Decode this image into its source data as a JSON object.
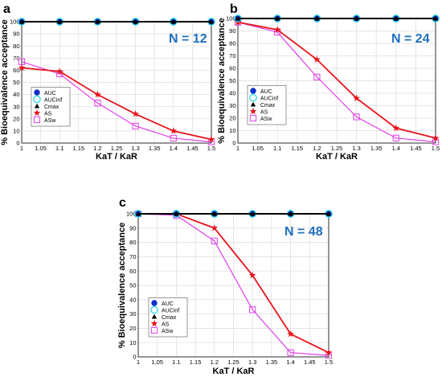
{
  "chart_data": [
    {
      "type": "line",
      "panel": "a",
      "annotation": "N = 12",
      "xlabel": "KaT / KaR",
      "ylabel": "% Bioequivalence acceptance",
      "xlim": [
        1,
        1.5
      ],
      "ylim": [
        0,
        100
      ],
      "xticks": [
        "1",
        "1.05",
        "1.1",
        "1.15",
        "1.2",
        "1.25",
        "1.3",
        "1.35",
        "1.4",
        "1.45",
        "1.5"
      ],
      "yticks": [
        "0",
        "10",
        "20",
        "30",
        "40",
        "50",
        "60",
        "70",
        "80",
        "90",
        "100"
      ],
      "grid": true,
      "legend_position": "bottom-left",
      "x": [
        1,
        1.1,
        1.2,
        1.3,
        1.4,
        1.5
      ],
      "series": [
        {
          "name": "AUC",
          "marker": "filled-circle",
          "color": "#1030c8",
          "values": [
            100,
            100,
            100,
            100,
            100,
            100
          ]
        },
        {
          "name": "AUCinf",
          "marker": "open-circle",
          "color": "#2fd7e0",
          "values": [
            100,
            100,
            100,
            100,
            100,
            100
          ]
        },
        {
          "name": "Cmax",
          "marker": "filled-triangle",
          "color": "#000000",
          "values": [
            100,
            100,
            100,
            100,
            100,
            100
          ]
        },
        {
          "name": "AS",
          "marker": "star",
          "color": "#e8141c",
          "values": [
            62,
            59,
            40,
            24,
            10,
            3
          ]
        },
        {
          "name": "ASw",
          "marker": "open-square",
          "color": "#e040e8",
          "values": [
            67,
            57,
            33,
            14,
            4,
            1
          ]
        }
      ]
    },
    {
      "type": "line",
      "panel": "b",
      "annotation": "N = 24",
      "xlabel": "KaT / KaR",
      "ylabel": "% Bioequivalence acceptance",
      "xlim": [
        1,
        1.5
      ],
      "ylim": [
        0,
        100
      ],
      "xticks": [
        "1",
        "1.05",
        "1.1",
        "1.15",
        "1.2",
        "1.25",
        "1.3",
        "1.35",
        "1.4",
        "1.45",
        "1.5"
      ],
      "yticks": [
        "0",
        "10",
        "20",
        "30",
        "40",
        "50",
        "60",
        "70",
        "80",
        "90",
        "100"
      ],
      "grid": true,
      "legend_position": "bottom-left",
      "x": [
        1,
        1.1,
        1.2,
        1.3,
        1.4,
        1.5
      ],
      "series": [
        {
          "name": "AUC",
          "marker": "filled-circle",
          "color": "#1030c8",
          "values": [
            100,
            100,
            100,
            100,
            100,
            100
          ]
        },
        {
          "name": "AUCinf",
          "marker": "open-circle",
          "color": "#2fd7e0",
          "values": [
            100,
            100,
            100,
            100,
            100,
            100
          ]
        },
        {
          "name": "Cmax",
          "marker": "filled-triangle",
          "color": "#000000",
          "values": [
            100,
            100,
            100,
            100,
            100,
            100
          ]
        },
        {
          "name": "AS",
          "marker": "star",
          "color": "#e8141c",
          "values": [
            97,
            91,
            67,
            36,
            12,
            4
          ]
        },
        {
          "name": "ASw",
          "marker": "open-square",
          "color": "#e040e8",
          "values": [
            97,
            89,
            53,
            21,
            4,
            1
          ]
        }
      ]
    },
    {
      "type": "line",
      "panel": "c",
      "annotation": "N = 48",
      "xlabel": "KaT / KaR",
      "ylabel": "% Bioequivalence acceptance",
      "xlim": [
        1,
        1.5
      ],
      "ylim": [
        0,
        100
      ],
      "xticks": [
        "1",
        "1.05",
        "1.1",
        "1.15",
        "1.2",
        "1.25",
        "1.3",
        "1.35",
        "1.4",
        "1.45",
        "1.5"
      ],
      "yticks": [
        "0",
        "10",
        "20",
        "30",
        "40",
        "50",
        "60",
        "70",
        "80",
        "90",
        "100"
      ],
      "grid": true,
      "legend_position": "bottom-left",
      "x": [
        1,
        1.1,
        1.2,
        1.3,
        1.4,
        1.5
      ],
      "series": [
        {
          "name": "AUC",
          "marker": "filled-circle",
          "color": "#1030c8",
          "values": [
            100,
            100,
            100,
            100,
            100,
            100
          ]
        },
        {
          "name": "AUCinf",
          "marker": "open-circle",
          "color": "#2fd7e0",
          "values": [
            100,
            100,
            100,
            100,
            100,
            100
          ]
        },
        {
          "name": "Cmax",
          "marker": "filled-triangle",
          "color": "#000000",
          "values": [
            100,
            100,
            100,
            100,
            100,
            100
          ]
        },
        {
          "name": "AS",
          "marker": "star",
          "color": "#e8141c",
          "values": [
            100,
            100,
            90,
            57,
            16,
            3
          ]
        },
        {
          "name": "ASw",
          "marker": "open-square",
          "color": "#e040e8",
          "values": [
            100,
            99,
            81,
            33,
            3,
            1
          ]
        }
      ]
    }
  ]
}
